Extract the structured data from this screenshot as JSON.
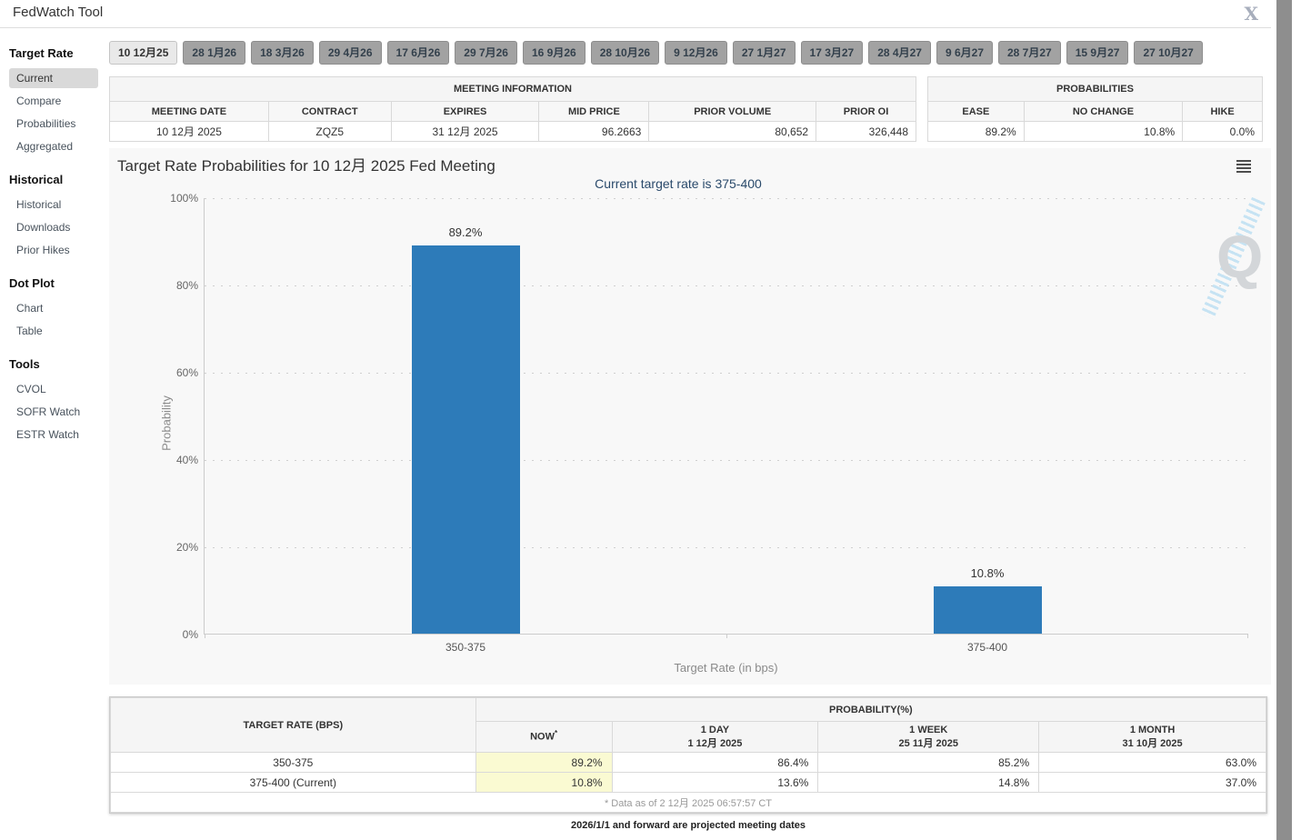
{
  "header": {
    "title": "FedWatch Tool",
    "close_icon": "X"
  },
  "sidebar": {
    "sections": [
      {
        "title": "Target Rate",
        "items": [
          {
            "label": "Current",
            "selected": true
          },
          {
            "label": "Compare"
          },
          {
            "label": "Probabilities"
          },
          {
            "label": "Aggregated"
          }
        ]
      },
      {
        "title": "Historical",
        "items": [
          {
            "label": "Historical"
          },
          {
            "label": "Downloads"
          },
          {
            "label": "Prior Hikes"
          }
        ]
      },
      {
        "title": "Dot Plot",
        "items": [
          {
            "label": "Chart"
          },
          {
            "label": "Table"
          }
        ]
      },
      {
        "title": "Tools",
        "items": [
          {
            "label": "CVOL"
          },
          {
            "label": "SOFR Watch"
          },
          {
            "label": "ESTR Watch"
          }
        ]
      }
    ]
  },
  "tabs": [
    {
      "label": "10 12月25",
      "selected": true
    },
    {
      "label": "28 1月26"
    },
    {
      "label": "18 3月26"
    },
    {
      "label": "29 4月26"
    },
    {
      "label": "17 6月26"
    },
    {
      "label": "29 7月26"
    },
    {
      "label": "16 9月26"
    },
    {
      "label": "28 10月26"
    },
    {
      "label": "9 12月26"
    },
    {
      "label": "27 1月27"
    },
    {
      "label": "17 3月27"
    },
    {
      "label": "28 4月27"
    },
    {
      "label": "9 6月27"
    },
    {
      "label": "28 7月27"
    },
    {
      "label": "15 9月27"
    },
    {
      "label": "27 10月27"
    }
  ],
  "meeting_info": {
    "title": "MEETING INFORMATION",
    "columns": [
      "MEETING DATE",
      "CONTRACT",
      "EXPIRES",
      "MID PRICE",
      "PRIOR VOLUME",
      "PRIOR OI"
    ],
    "values": [
      "10 12月 2025",
      "ZQZ5",
      "31 12月 2025",
      "96.2663",
      "80,652",
      "326,448"
    ]
  },
  "probabilities": {
    "title": "PROBABILITIES",
    "columns": [
      "EASE",
      "NO CHANGE",
      "HIKE"
    ],
    "values": [
      "89.2%",
      "10.8%",
      "0.0%"
    ]
  },
  "chart_data": {
    "type": "bar",
    "title": "Target Rate Probabilities for 10 12月 2025 Fed Meeting",
    "subtitle": "Current target rate is 375-400",
    "categories": [
      "350-375",
      "375-400"
    ],
    "values": [
      89.2,
      10.8
    ],
    "bar_labels": [
      "89.2%",
      "10.8%"
    ],
    "xlabel": "Target Rate (in bps)",
    "ylabel": "Probability",
    "yticks": [
      "100%",
      "80%",
      "60%",
      "40%",
      "20%",
      "0%"
    ],
    "ylim": [
      0,
      100
    ],
    "grid": "dotted-horizontal",
    "legend": "none",
    "bar_color": "#2d7bb9",
    "watermark": "Q"
  },
  "history_table": {
    "rate_header": "TARGET RATE (BPS)",
    "prob_header": "PROBABILITY(%)",
    "col_headers": [
      {
        "label": "NOW",
        "sup": "*"
      },
      {
        "label": "1 DAY",
        "date": "1 12月 2025"
      },
      {
        "label": "1 WEEK",
        "date": "25 11月 2025"
      },
      {
        "label": "1 MONTH",
        "date": "31 10月 2025"
      }
    ],
    "rows": [
      {
        "rate": "350-375",
        "now": "89.2%",
        "day": "86.4%",
        "week": "85.2%",
        "month": "63.0%"
      },
      {
        "rate": "375-400 (Current)",
        "now": "10.8%",
        "day": "13.6%",
        "week": "14.8%",
        "month": "37.0%"
      }
    ],
    "footnote": "* Data as of 2 12月 2025 06:57:57 CT"
  },
  "footer": {
    "note": "2026/1/1 and forward are projected meeting dates"
  }
}
